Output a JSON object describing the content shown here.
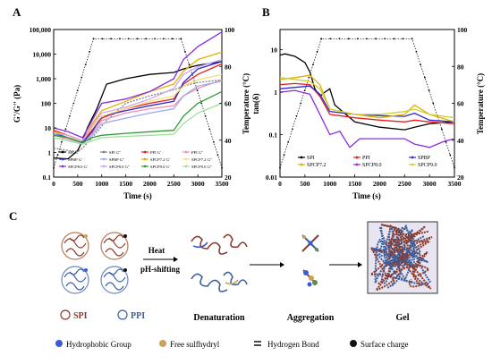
{
  "panels": {
    "a": {
      "letter": "A"
    },
    "b": {
      "letter": "B"
    },
    "c": {
      "letter": "C"
    }
  },
  "chart_data": [
    {
      "type": "line",
      "panel": "A",
      "xlabel": "Time (s)",
      "ylabel": "G'/G'' (Pa)",
      "y2label": "Temperature (°C)",
      "xlim": [
        0,
        3500
      ],
      "ylim": [
        0.1,
        100000
      ],
      "yscale": "log",
      "y2lim": [
        20,
        100
      ],
      "xticks": [
        "0",
        "500",
        "1000",
        "1500",
        "2000",
        "2500",
        "3000",
        "3500"
      ],
      "yticks": [
        "0.1",
        "1",
        "10",
        "100",
        "1,000",
        "10,000",
        "100,000"
      ],
      "y2ticks": [
        "20",
        "40",
        "60",
        "80",
        "100"
      ],
      "legend_position": "bottom-center",
      "temperature": {
        "x": [
          0,
          830,
          2650,
          3500
        ],
        "y": [
          25,
          95,
          95,
          25
        ]
      },
      "series": [
        {
          "name": "SPI G'",
          "color": "#000000",
          "dash": "solid",
          "x": [
            0,
            300,
            500,
            600,
            700,
            900,
            1100,
            1500,
            2000,
            2500,
            2700,
            3000,
            3200,
            3500
          ],
          "y": [
            0.6,
            0.55,
            1.2,
            3,
            10,
            60,
            600,
            1000,
            1500,
            1800,
            2500,
            3500,
            4000,
            5000
          ]
        },
        {
          "name": "SPI G''",
          "color": "#808080",
          "dash": "dot",
          "x": [
            0,
            300,
            500,
            600,
            800,
            1100,
            1500,
            2000,
            2500,
            2700,
            3000,
            3500
          ],
          "y": [
            1.5,
            1.2,
            1.1,
            1.5,
            4,
            20,
            100,
            200,
            350,
            500,
            700,
            900
          ]
        },
        {
          "name": "PPI G'",
          "color": "#e81e1e",
          "dash": "solid",
          "x": [
            0,
            300,
            600,
            800,
            1000,
            1500,
            2000,
            2500,
            2700,
            3000,
            3500
          ],
          "y": [
            8,
            5,
            3,
            8,
            25,
            60,
            100,
            150,
            600,
            1500,
            4000
          ]
        },
        {
          "name": "PPI G''",
          "color": "#f48fb1",
          "dash": "solid",
          "x": [
            0,
            300,
            600,
            800,
            1000,
            1500,
            2000,
            2500,
            2700,
            3000,
            3500
          ],
          "y": [
            5,
            3.5,
            2.5,
            6,
            20,
            40,
            60,
            80,
            200,
            400,
            900
          ]
        },
        {
          "name": "SPBP G'",
          "color": "#2b2bd9",
          "dash": "solid",
          "x": [
            0,
            300,
            600,
            800,
            1000,
            1500,
            2000,
            2500,
            2700,
            3000,
            3500
          ],
          "y": [
            6,
            4,
            2.5,
            7,
            30,
            50,
            80,
            120,
            700,
            2500,
            5000
          ]
        },
        {
          "name": "SPBP G''",
          "color": "#9fa8f0",
          "dash": "solid",
          "x": [
            0,
            300,
            600,
            800,
            1000,
            1500,
            2000,
            2500,
            2700,
            3000,
            3500
          ],
          "y": [
            4,
            3,
            2.2,
            5,
            15,
            25,
            40,
            60,
            200,
            500,
            800
          ]
        },
        {
          "name": "SPCP7.2 G'",
          "color": "#e0b000",
          "dash": "solid",
          "x": [
            0,
            300,
            600,
            800,
            1000,
            1500,
            2000,
            2500,
            2700,
            3000,
            3500
          ],
          "y": [
            7,
            5,
            3,
            15,
            50,
            120,
            300,
            600,
            2000,
            6000,
            12000
          ]
        },
        {
          "name": "SPCP7.2 G''",
          "color": "#f5dd7a",
          "dash": "solid",
          "x": [
            0,
            300,
            600,
            800,
            1000,
            1500,
            2000,
            2500,
            2700,
            3000,
            3500
          ],
          "y": [
            5,
            4,
            3,
            10,
            30,
            60,
            120,
            200,
            500,
            900,
            1500
          ]
        },
        {
          "name": "SPCP8.0 G'",
          "color": "#8a2be2",
          "dash": "solid",
          "x": [
            0,
            300,
            600,
            800,
            1000,
            1500,
            2000,
            2500,
            2700,
            3000,
            3500
          ],
          "y": [
            10,
            7,
            4,
            20,
            100,
            150,
            300,
            1000,
            6000,
            20000,
            80000
          ]
        },
        {
          "name": "SPCP8.0 G''",
          "color": "#cfa3ef",
          "dash": "solid",
          "x": [
            0,
            300,
            600,
            800,
            1000,
            1500,
            2000,
            2500,
            2700,
            3000,
            3500
          ],
          "y": [
            6,
            5,
            3,
            12,
            40,
            70,
            150,
            400,
            1500,
            3000,
            6000
          ]
        },
        {
          "name": "SPCP9.0 G'",
          "color": "#2e9b2e",
          "dash": "solid",
          "x": [
            0,
            300,
            600,
            800,
            1000,
            1500,
            2000,
            2500,
            2700,
            3000,
            3500
          ],
          "y": [
            5,
            4,
            2.5,
            4,
            5,
            6,
            7,
            8,
            30,
            100,
            300
          ]
        },
        {
          "name": "SPCP9.0 G''",
          "color": "#9edf9e",
          "dash": "solid",
          "x": [
            0,
            300,
            600,
            800,
            1000,
            1500,
            2000,
            2500,
            2700,
            3000,
            3500
          ],
          "y": [
            4,
            3,
            2.2,
            3,
            4,
            4.5,
            5,
            5.5,
            15,
            40,
            100
          ]
        }
      ]
    },
    {
      "type": "line",
      "panel": "B",
      "xlabel": "Time (s)",
      "ylabel": "tan(δ)",
      "y2label": "Temperature (°C)",
      "xlim": [
        0,
        3500
      ],
      "ylim": [
        0.01,
        30
      ],
      "yscale": "log",
      "y2lim": [
        20,
        100
      ],
      "xticks": [
        "0",
        "500",
        "1000",
        "1500",
        "2000",
        "2500",
        "3000",
        "3500"
      ],
      "yticks": [
        "0.01",
        "0.1",
        "1",
        "10"
      ],
      "y2ticks": [
        "20",
        "40",
        "60",
        "80",
        "100"
      ],
      "legend_position": "bottom-center",
      "temperature": {
        "x": [
          0,
          830,
          2650,
          3500
        ],
        "y": [
          25,
          95,
          95,
          25
        ]
      },
      "series": [
        {
          "name": "SPI",
          "color": "#000000",
          "x": [
            0,
            100,
            300,
            500,
            600,
            700,
            800,
            900,
            1000,
            1100,
            1500,
            2000,
            2500,
            2700,
            3000,
            3500
          ],
          "y": [
            7.5,
            8,
            7,
            5,
            3,
            1.2,
            0.8,
            1,
            1.2,
            0.5,
            0.2,
            0.15,
            0.13,
            0.15,
            0.18,
            0.2
          ]
        },
        {
          "name": "PPI",
          "color": "#e81e1e",
          "x": [
            0,
            300,
            600,
            800,
            1000,
            1500,
            2000,
            2500,
            2700,
            3000,
            3500
          ],
          "y": [
            1.5,
            1.6,
            1.5,
            0.8,
            0.3,
            0.25,
            0.22,
            0.2,
            0.22,
            0.2,
            0.18
          ]
        },
        {
          "name": "SPBP",
          "color": "#2b2bd9",
          "x": [
            0,
            300,
            600,
            800,
            1000,
            1500,
            2000,
            2500,
            2700,
            3000,
            3500
          ],
          "y": [
            1.2,
            1.3,
            1.4,
            0.9,
            0.35,
            0.3,
            0.28,
            0.27,
            0.32,
            0.22,
            0.2
          ]
        },
        {
          "name": "SPCP7.2",
          "color": "#e0b000",
          "x": [
            0,
            300,
            600,
            800,
            1000,
            1500,
            2000,
            2500,
            2700,
            3000,
            3500
          ],
          "y": [
            2,
            2.2,
            2.5,
            1.5,
            0.4,
            0.3,
            0.25,
            0.3,
            0.5,
            0.3,
            0.2
          ]
        },
        {
          "name": "SPCP8.0",
          "color": "#8a2be2",
          "x": [
            0,
            300,
            600,
            800,
            1000,
            1200,
            1400,
            1600,
            2000,
            2500,
            2700,
            3000,
            3300,
            3500
          ],
          "y": [
            1,
            1.1,
            0.9,
            0.3,
            0.1,
            0.12,
            0.05,
            0.08,
            0.08,
            0.08,
            0.06,
            0.05,
            0.07,
            0.08
          ]
        },
        {
          "name": "SPCP9.0",
          "color": "#cfcf30",
          "x": [
            0,
            300,
            600,
            800,
            1000,
            1500,
            2000,
            2500,
            2700,
            3000,
            3500
          ],
          "y": [
            2.2,
            2,
            1.8,
            1.2,
            0.4,
            0.3,
            0.3,
            0.35,
            0.4,
            0.3,
            0.25
          ]
        }
      ]
    }
  ],
  "diagram": {
    "steps": [
      {
        "label": "Heat"
      },
      {
        "label": "pH-shifting"
      }
    ],
    "stages": [
      "Denaturation",
      "Aggregation",
      "Gel"
    ],
    "proteins": [
      {
        "label": "SPI",
        "color": "#8b3a2b"
      },
      {
        "label": "PPI",
        "color": "#3a5fa0"
      }
    ],
    "key": [
      {
        "label": "Hydrophobic Group",
        "color": "#3b5bd9",
        "symbol": "dot"
      },
      {
        "label": "Free sulfhydryl",
        "color": "#c9a25a",
        "symbol": "dot"
      },
      {
        "label": "Hydrogen Bond",
        "color": "#000000",
        "symbol": "equals"
      },
      {
        "label": "Surface charge",
        "color": "#111111",
        "symbol": "dot"
      }
    ]
  }
}
